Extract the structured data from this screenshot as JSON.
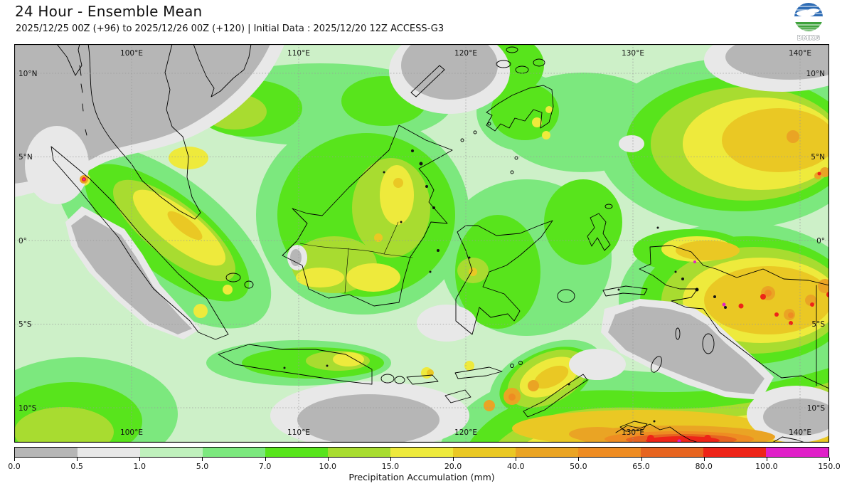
{
  "header": {
    "title": "24 Hour - Ensemble Mean",
    "subtitle": "2025/12/25 00Z (+96) to 2025/12/26 00Z (+120) | Initial Data : 2025/12/20 12Z ACCESS-G3",
    "logo_text": "BMKG"
  },
  "map": {
    "lon_labels": [
      "100°E",
      "110°E",
      "120°E",
      "130°E",
      "140°E"
    ],
    "lat_labels": [
      "10°N",
      "5°N",
      "0°",
      "5°S",
      "10°S"
    ]
  },
  "colorbar": {
    "label": "Precipitation Accumulation (mm)",
    "tick_labels": [
      "0.0",
      "0.5",
      "1.0",
      "5.0",
      "7.0",
      "10.0",
      "15.0",
      "20.0",
      "40.0",
      "50.0",
      "65.0",
      "80.0",
      "100.0",
      "150.0"
    ],
    "segment_colors": [
      "#b6b6b6",
      "#e8e8e8",
      "#bff0bc",
      "#7ce87e",
      "#58e41c",
      "#a8dc30",
      "#eeea3c",
      "#eac824",
      "#eaa424",
      "#ee8c22",
      "#e66420",
      "#ee2418",
      "#e020c8"
    ]
  },
  "chart_data": {
    "type": "heatmap",
    "title": "24 Hour - Ensemble Mean",
    "subtitle": "2025/12/25 00Z (+96) to 2025/12/26 00Z (+120) | Initial Data : 2025/12/20 12Z ACCESS-G3",
    "colorbar_label": "Precipitation Accumulation (mm)",
    "units": "mm",
    "levels_mm": [
      0.0,
      0.5,
      1.0,
      5.0,
      7.0,
      10.0,
      15.0,
      20.0,
      40.0,
      50.0,
      65.0,
      80.0,
      100.0,
      150.0
    ],
    "level_colors": [
      "#b6b6b6",
      "#e8e8e8",
      "#bff0bc",
      "#7ce87e",
      "#58e41c",
      "#a8dc30",
      "#eeea3c",
      "#eac824",
      "#eaa424",
      "#ee8c22",
      "#e66420",
      "#ee2418",
      "#e020c8"
    ],
    "x_tick_labels": [
      "100°E",
      "110°E",
      "120°E",
      "130°E",
      "140°E"
    ],
    "y_tick_labels": [
      "10°N",
      "5°N",
      "0°",
      "5°S",
      "10°S"
    ],
    "grid": true,
    "legend_position": "bottom"
  }
}
